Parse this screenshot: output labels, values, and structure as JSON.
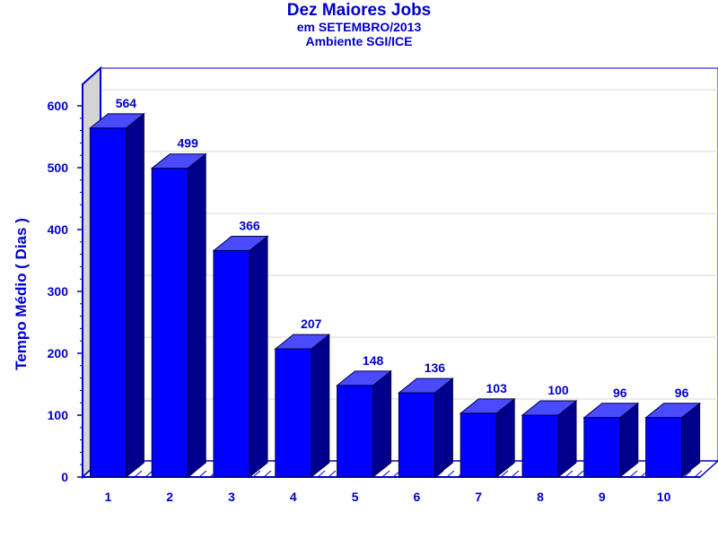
{
  "chart_data": {
    "type": "bar",
    "title": "Dez Maiores Jobs",
    "subtitle_lines": [
      "em SETEMBRO/2013",
      "Ambiente SGI/ICE"
    ],
    "xlabel": "",
    "ylabel": "Tempo Médio ( Dias )",
    "categories": [
      "1",
      "2",
      "3",
      "4",
      "5",
      "6",
      "7",
      "8",
      "9",
      "10"
    ],
    "values": [
      564,
      499,
      366,
      207,
      148,
      136,
      103,
      100,
      96,
      96
    ],
    "ylim": [
      0,
      600
    ],
    "yticks": [
      0,
      100,
      200,
      300,
      400,
      500,
      600
    ],
    "grid": true,
    "legend": "none",
    "bar_color": "#0000ff",
    "text_color": "#0000cc"
  }
}
